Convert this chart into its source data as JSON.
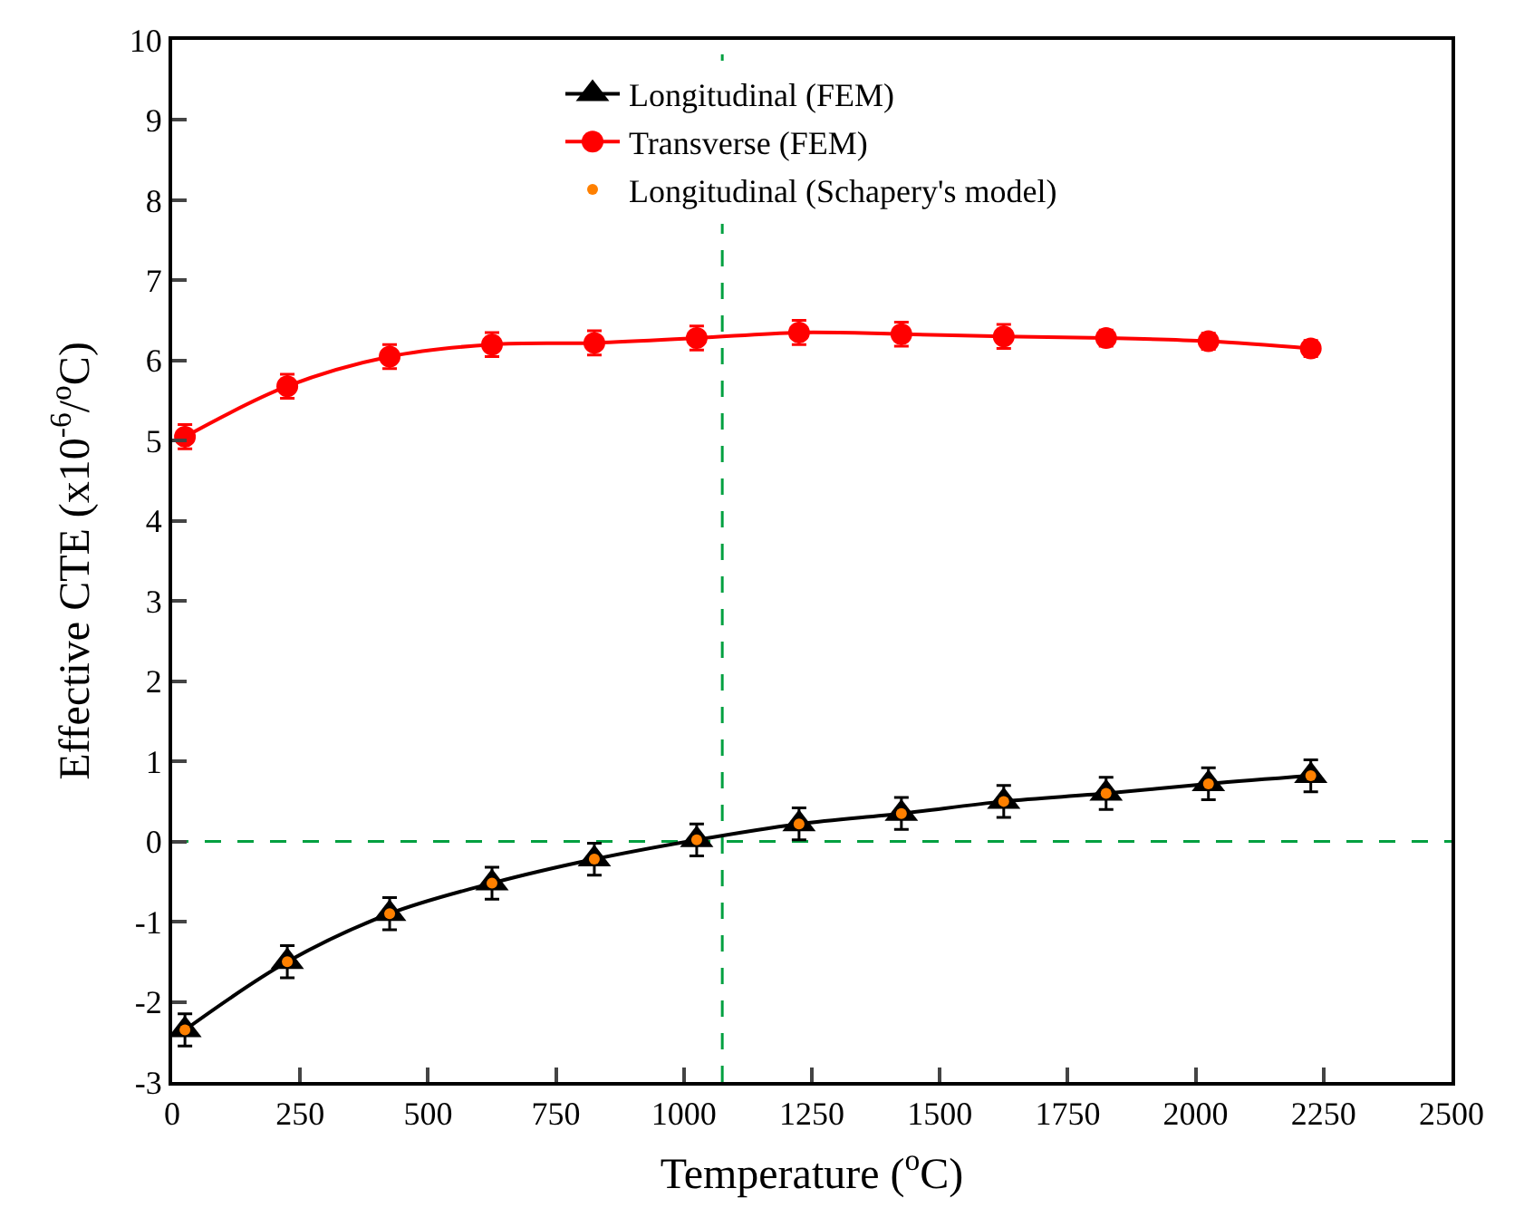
{
  "chart_data": {
    "type": "line",
    "xlabel": "Temperature ($^{o}$C)",
    "ylabel": "Effective CTE (x10$^{-6}$/$^{o}$C)",
    "x": [
      25,
      225,
      425,
      625,
      825,
      1025,
      1225,
      1425,
      1625,
      1825,
      2025,
      2225
    ],
    "series": [
      {
        "name": "Longitudinal (FEM)",
        "color": "#000000",
        "marker": "triangle",
        "values": [
          -2.35,
          -1.5,
          -0.9,
          -0.52,
          -0.22,
          0.02,
          0.22,
          0.35,
          0.5,
          0.6,
          0.72,
          0.82
        ],
        "errors": [
          0.2,
          0.2,
          0.2,
          0.2,
          0.2,
          0.2,
          0.2,
          0.2,
          0.2,
          0.2,
          0.2,
          0.2
        ]
      },
      {
        "name": "Transverse (FEM)",
        "color": "#ff0000",
        "marker": "circle",
        "values": [
          5.05,
          5.68,
          6.05,
          6.2,
          6.22,
          6.28,
          6.35,
          6.33,
          6.3,
          6.28,
          6.24,
          6.15
        ],
        "errors": [
          0.15,
          0.15,
          0.15,
          0.15,
          0.15,
          0.15,
          0.15,
          0.15,
          0.15,
          0.1,
          0.1,
          0.1
        ]
      },
      {
        "name": "Longitudinal (Schapery's model)",
        "color": "#ff8000",
        "type": "scatter",
        "marker": "circle",
        "values": [
          -2.35,
          -1.5,
          -0.9,
          -0.52,
          -0.22,
          0.02,
          0.22,
          0.35,
          0.5,
          0.6,
          0.72,
          0.82
        ]
      }
    ],
    "xlim": [
      0,
      2500
    ],
    "xticks": [
      0,
      250,
      500,
      750,
      1000,
      1250,
      1500,
      1750,
      2000,
      2250,
      2500
    ],
    "ylim": [
      -3,
      10
    ],
    "yticks": [
      -3,
      -2,
      -1,
      0,
      1,
      2,
      3,
      4,
      5,
      6,
      7,
      8,
      9,
      10
    ],
    "ref_lines": [
      {
        "axis": "y",
        "value": 0,
        "color": "#00a040",
        "line_style": "dashed"
      },
      {
        "axis": "x",
        "value": 1075,
        "color": "#00a040",
        "line_style": "dashed"
      }
    ],
    "grid": false,
    "legend": "top",
    "line_style": "solid"
  }
}
